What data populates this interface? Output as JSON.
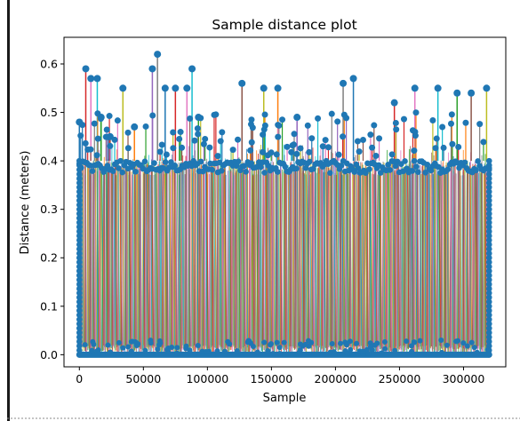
{
  "chart_data": {
    "type": "scatter",
    "style": "stem-lines-with-point-markers",
    "title": "Sample distance plot",
    "xlabel": "Sample",
    "ylabel": "Distance (meters)",
    "xlim": [
      -12000,
      333000
    ],
    "ylim": [
      -0.025,
      0.655
    ],
    "x_ticks": [
      0,
      50000,
      100000,
      150000,
      200000,
      250000,
      300000
    ],
    "x_tick_labels": [
      "0",
      "50000",
      "100000",
      "150000",
      "200000",
      "250000",
      "300000"
    ],
    "y_ticks": [
      0.0,
      0.1,
      0.2,
      0.3,
      0.4,
      0.5,
      0.6
    ],
    "y_tick_labels": [
      "0.0",
      "0.1",
      "0.2",
      "0.3",
      "0.4",
      "0.5",
      "0.6"
    ],
    "grid": false,
    "legend": "none",
    "marker_color": "#1f77b4",
    "line_colors": [
      "#1f77b4",
      "#ff7f0e",
      "#2ca02c",
      "#d62728",
      "#9467bd",
      "#8c564b",
      "#e377c2",
      "#7f7f7f",
      "#bcbd22",
      "#17becf"
    ],
    "x_range_of_samples": [
      0,
      320000
    ],
    "dense_band": {
      "baseline_y": 0.0,
      "typical_top_y": 0.4
    },
    "peaks": [
      {
        "x": 0,
        "y": 0.48
      },
      {
        "x": 5000,
        "y": 0.59
      },
      {
        "x": 9000,
        "y": 0.57
      },
      {
        "x": 14000,
        "y": 0.57
      },
      {
        "x": 17000,
        "y": 0.49
      },
      {
        "x": 24000,
        "y": 0.45
      },
      {
        "x": 34000,
        "y": 0.55
      },
      {
        "x": 43000,
        "y": 0.47
      },
      {
        "x": 57000,
        "y": 0.59
      },
      {
        "x": 61000,
        "y": 0.62
      },
      {
        "x": 67000,
        "y": 0.55
      },
      {
        "x": 75000,
        "y": 0.55
      },
      {
        "x": 84000,
        "y": 0.55
      },
      {
        "x": 88000,
        "y": 0.59
      },
      {
        "x": 93000,
        "y": 0.49
      },
      {
        "x": 127000,
        "y": 0.56
      },
      {
        "x": 144000,
        "y": 0.55
      },
      {
        "x": 155000,
        "y": 0.55
      },
      {
        "x": 170000,
        "y": 0.49
      },
      {
        "x": 206000,
        "y": 0.56
      },
      {
        "x": 214000,
        "y": 0.57
      },
      {
        "x": 246000,
        "y": 0.52
      },
      {
        "x": 262000,
        "y": 0.55
      },
      {
        "x": 280000,
        "y": 0.55
      },
      {
        "x": 295000,
        "y": 0.54
      },
      {
        "x": 306000,
        "y": 0.54
      },
      {
        "x": 318000,
        "y": 0.55
      }
    ]
  }
}
